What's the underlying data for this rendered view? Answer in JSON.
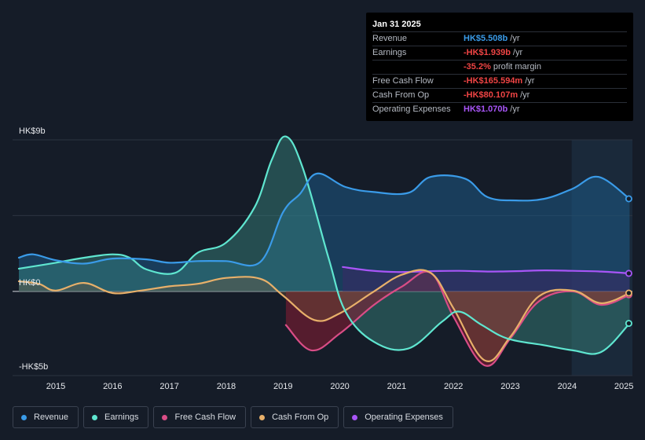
{
  "tooltip": {
    "date": "Jan 31 2025",
    "rows": [
      {
        "label": "Revenue",
        "value": "HK$5.508b",
        "unit": "/yr",
        "color": "#3a9be8"
      },
      {
        "label": "Earnings",
        "value": "-HK$1.939b",
        "unit": "/yr",
        "color": "#ef4444"
      },
      {
        "label": "",
        "value": "-35.2%",
        "unit": "profit margin",
        "color": "#ef4444"
      },
      {
        "label": "Free Cash Flow",
        "value": "-HK$165.594m",
        "unit": "/yr",
        "color": "#ef4444"
      },
      {
        "label": "Cash From Op",
        "value": "-HK$80.107m",
        "unit": "/yr",
        "color": "#ef4444"
      },
      {
        "label": "Operating Expenses",
        "value": "HK$1.070b",
        "unit": "/yr",
        "color": "#a855f7"
      }
    ]
  },
  "legend": [
    {
      "label": "Revenue",
      "color": "#3a9be8"
    },
    {
      "label": "Earnings",
      "color": "#5fe6d0"
    },
    {
      "label": "Free Cash Flow",
      "color": "#d94d86"
    },
    {
      "label": "Cash From Op",
      "color": "#e8b06a"
    },
    {
      "label": "Operating Expenses",
      "color": "#a855f7"
    }
  ],
  "chart_data": {
    "type": "area",
    "title": "",
    "y_axis_labels": {
      "top": "HK$9b",
      "zero": "HK$0",
      "bottom": "-HK$5b"
    },
    "ylim": [
      -5,
      9
    ],
    "xlim": [
      2014.35,
      2025.15
    ],
    "x_tick_labels": [
      "2015",
      "2016",
      "2017",
      "2018",
      "2019",
      "2020",
      "2021",
      "2022",
      "2023",
      "2024",
      "2025"
    ],
    "x_tick_values": [
      2015,
      2016,
      2017,
      2018,
      2019,
      2020,
      2021,
      2022,
      2023,
      2024,
      2025
    ],
    "forecast_shade_start": 2024.08,
    "series": [
      {
        "name": "Revenue",
        "color": "#3a9be8",
        "x": [
          2014.35,
          2014.6,
          2015.0,
          2015.5,
          2016.0,
          2016.6,
          2017.0,
          2017.5,
          2018.0,
          2018.6,
          2019.0,
          2019.3,
          2019.6,
          2020.1,
          2020.6,
          2021.2,
          2021.6,
          2022.2,
          2022.6,
          2023.1,
          2023.6,
          2024.1,
          2024.55,
          2025.1
        ],
        "values": [
          2.0,
          2.2,
          1.85,
          1.65,
          1.95,
          1.9,
          1.7,
          1.8,
          1.8,
          1.75,
          4.7,
          5.8,
          7.0,
          6.2,
          5.9,
          5.85,
          6.8,
          6.7,
          5.6,
          5.4,
          5.5,
          6.1,
          6.8,
          5.5
        ]
      },
      {
        "name": "Earnings",
        "color": "#5fe6d0",
        "x": [
          2014.35,
          2015.0,
          2015.5,
          2016.0,
          2016.3,
          2016.6,
          2017.1,
          2017.5,
          2018.0,
          2018.5,
          2018.8,
          2019.05,
          2019.35,
          2019.8,
          2020.1,
          2020.6,
          2021.2,
          2021.8,
          2022.1,
          2022.5,
          2022.95,
          2023.6,
          2024.1,
          2024.6,
          2025.1
        ],
        "values": [
          1.35,
          1.7,
          2.0,
          2.2,
          2.0,
          1.3,
          1.1,
          2.3,
          2.9,
          5.0,
          7.8,
          9.2,
          7.3,
          2.0,
          -1.2,
          -3.0,
          -3.4,
          -1.8,
          -1.2,
          -2.0,
          -2.8,
          -3.2,
          -3.5,
          -3.6,
          -1.9
        ]
      },
      {
        "name": "Free Cash Flow",
        "color": "#d94d86",
        "x": [
          2019.05,
          2019.5,
          2020.0,
          2020.6,
          2021.1,
          2021.6,
          2022.0,
          2022.55,
          2023.0,
          2023.5,
          2024.1,
          2024.6,
          2025.1
        ],
        "values": [
          -2.0,
          -3.5,
          -2.5,
          -0.8,
          0.3,
          1.1,
          -1.5,
          -4.4,
          -2.8,
          -0.6,
          0.0,
          -0.8,
          -0.2
        ]
      },
      {
        "name": "Cash From Op",
        "color": "#e8b06a",
        "x": [
          2014.35,
          2014.7,
          2015.0,
          2015.5,
          2016.0,
          2016.5,
          2017.0,
          2017.5,
          2018.0,
          2018.6,
          2019.0,
          2019.55,
          2020.0,
          2020.6,
          2021.1,
          2021.6,
          2022.0,
          2022.55,
          2023.0,
          2023.5,
          2024.1,
          2024.6,
          2025.1
        ],
        "values": [
          0.6,
          0.45,
          0.05,
          0.5,
          -0.1,
          0.05,
          0.3,
          0.45,
          0.8,
          0.75,
          -0.25,
          -1.7,
          -1.3,
          0.0,
          1.0,
          1.1,
          -1.0,
          -4.1,
          -2.7,
          -0.3,
          0.05,
          -0.7,
          -0.1
        ]
      },
      {
        "name": "Operating Expenses",
        "color": "#a855f7",
        "x": [
          2020.05,
          2020.5,
          2021.0,
          2021.6,
          2022.1,
          2022.6,
          2023.1,
          2023.6,
          2024.1,
          2024.6,
          2025.1
        ],
        "values": [
          1.45,
          1.25,
          1.15,
          1.2,
          1.22,
          1.18,
          1.2,
          1.25,
          1.22,
          1.18,
          1.07
        ]
      }
    ]
  }
}
